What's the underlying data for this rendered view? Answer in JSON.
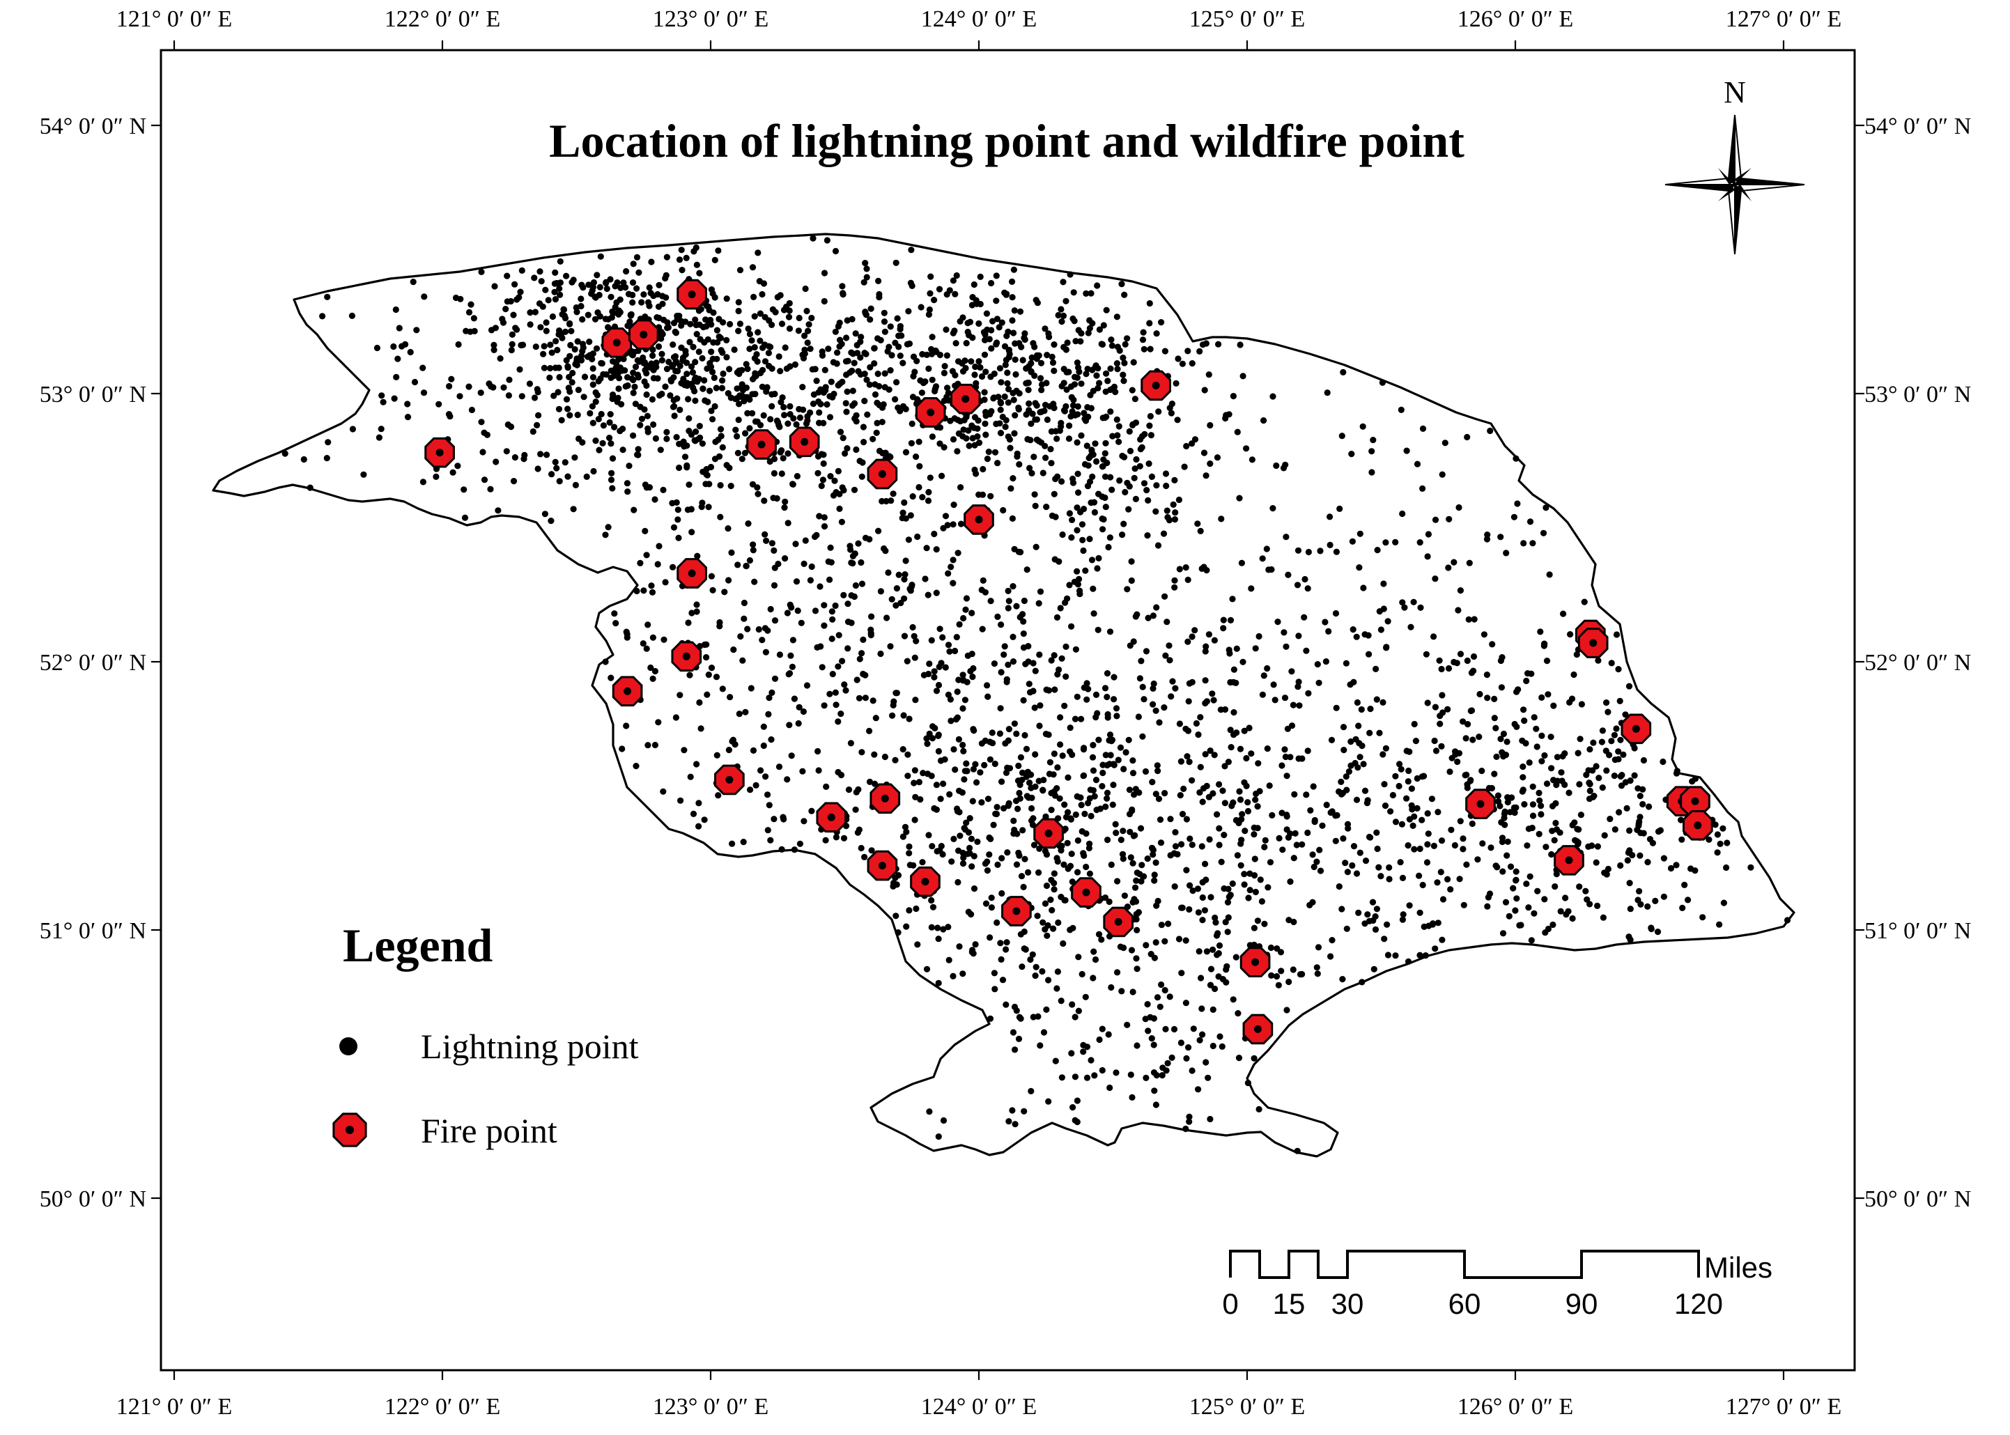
{
  "title": "Location of lightning point and wildfire point",
  "north_arrow": {
    "label": "N"
  },
  "legend": {
    "title": "Legend",
    "items": [
      {
        "symbol": "lightning",
        "label": "Lightning point"
      },
      {
        "symbol": "fire",
        "label": "Fire point"
      }
    ]
  },
  "graticule": {
    "longitudes": [
      {
        "value": 121,
        "label": "121° 0′ 0″ E"
      },
      {
        "value": 122,
        "label": "122° 0′ 0″ E"
      },
      {
        "value": 123,
        "label": "123° 0′ 0″ E"
      },
      {
        "value": 124,
        "label": "124° 0′ 0″ E"
      },
      {
        "value": 125,
        "label": "125° 0′ 0″ E"
      },
      {
        "value": 126,
        "label": "126° 0′ 0″ E"
      },
      {
        "value": 127,
        "label": "127° 0′ 0″ E"
      }
    ],
    "latitudes": [
      {
        "value": 54,
        "label": "54° 0′ 0″ N"
      },
      {
        "value": 53,
        "label": "53° 0′ 0″ N"
      },
      {
        "value": 52,
        "label": "52° 0′ 0″ N"
      },
      {
        "value": 51,
        "label": "51° 0′ 0″ N"
      },
      {
        "value": 50,
        "label": "50° 0′ 0″ N"
      }
    ]
  },
  "scale_bar": {
    "unit": "Miles",
    "ticks": [
      "0",
      "15",
      "30",
      "60",
      "90",
      "120"
    ]
  },
  "colors": {
    "fire": "#e8141b",
    "lightning": "#000000",
    "boundary": "#000000"
  },
  "fire_points": [
    [
      121.99,
      52.78
    ],
    [
      122.65,
      53.19
    ],
    [
      122.75,
      53.22
    ],
    [
      122.93,
      53.37
    ],
    [
      123.19,
      52.81
    ],
    [
      123.35,
      52.82
    ],
    [
      123.64,
      52.7
    ],
    [
      123.82,
      52.93
    ],
    [
      123.95,
      52.98
    ],
    [
      124.0,
      52.53
    ],
    [
      124.66,
      53.03
    ],
    [
      122.93,
      52.33
    ],
    [
      122.91,
      52.02
    ],
    [
      122.69,
      51.89
    ],
    [
      123.07,
      51.56
    ],
    [
      123.45,
      51.42
    ],
    [
      123.65,
      51.49
    ],
    [
      123.64,
      51.24
    ],
    [
      123.8,
      51.18
    ],
    [
      124.14,
      51.07
    ],
    [
      124.26,
      51.36
    ],
    [
      124.4,
      51.14
    ],
    [
      124.52,
      51.03
    ],
    [
      125.03,
      50.88
    ],
    [
      125.04,
      50.63
    ],
    [
      125.87,
      51.47
    ],
    [
      126.2,
      51.26
    ],
    [
      126.28,
      52.1
    ],
    [
      126.29,
      52.07
    ],
    [
      126.45,
      51.75
    ],
    [
      126.62,
      51.48
    ],
    [
      126.67,
      51.48
    ],
    [
      126.68,
      51.39
    ]
  ]
}
